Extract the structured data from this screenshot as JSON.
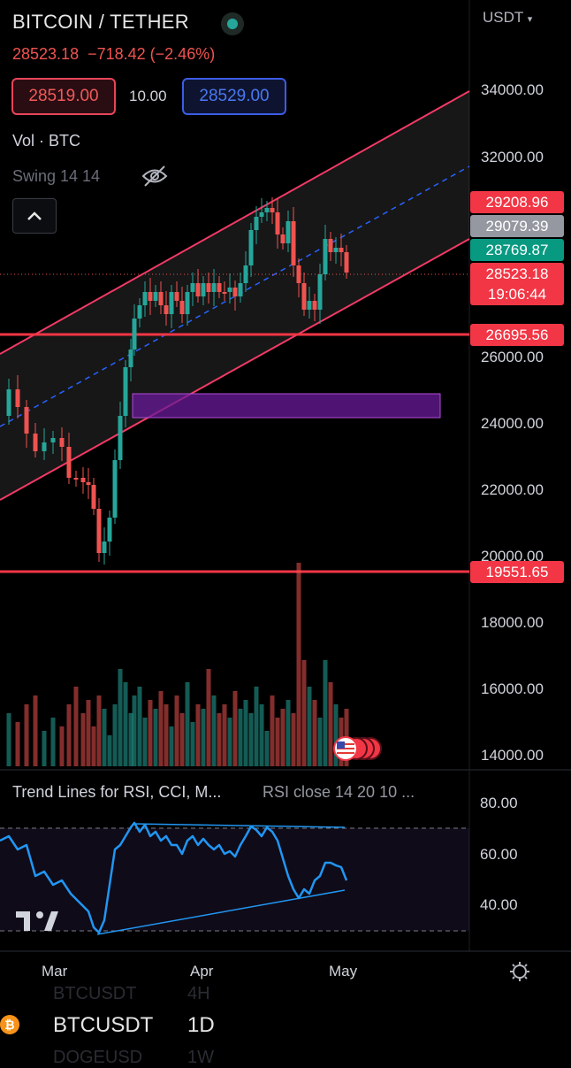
{
  "header": {
    "title": "BITCOIN / TETHER",
    "currency": "USDT",
    "last_price": "28523.18",
    "change": "−718.42 (−2.46%)",
    "bid": "28519.00",
    "spread": "10.00",
    "ask": "28529.00"
  },
  "indicators": {
    "vol_label": "Vol · BTC",
    "swing_label": "Swing 14 14"
  },
  "price_axis": {
    "labels": [
      "34000.00",
      "32000.00",
      "26000.00",
      "24000.00",
      "22000.00",
      "20000.00",
      "18000.00",
      "16000.00",
      "14000.00"
    ]
  },
  "price_tags": [
    {
      "value": "29208.96",
      "color": "#f23645"
    },
    {
      "value": "29079.39",
      "color": "#9598a1"
    },
    {
      "value": "28769.87",
      "color": "#089981"
    },
    {
      "value": "28523.18",
      "color": "#f23645"
    },
    {
      "value": "19:06:44",
      "color": "#f23645"
    },
    {
      "value": "26695.56",
      "color": "#f23645"
    },
    {
      "value": "19551.65",
      "color": "#f23645"
    }
  ],
  "rsi_panel": {
    "title": "Trend Lines for RSI, CCI, M...",
    "params": "RSI close 14 20 10 ...",
    "labels": [
      "80.00",
      "60.00",
      "40.00"
    ]
  },
  "time_axis": [
    "Mar",
    "Apr",
    "May"
  ],
  "bottom_bar": {
    "symbol": "BTCUSDT",
    "timeframe": "1D",
    "ghost_symbol_top": "BTCUSDT",
    "ghost_tf_top": "4H",
    "ghost_symbol_bottom": "DOGEUSD",
    "ghost_tf_bottom": "1W"
  },
  "colors": {
    "up": "#26a69a",
    "down": "#ef5350",
    "channel": "#f23a66",
    "level": "#f23645",
    "midline": "#2962ff",
    "zone": "#9c27b0",
    "rsi": "#2196f3"
  },
  "chart_data": {
    "type": "candlestick",
    "price_levels": [
      26695.56,
      19551.65
    ],
    "price_axis_range": [
      14000,
      34000
    ],
    "rsi_levels": [
      70,
      30
    ],
    "rsi_axis_labels": [
      80,
      60,
      40
    ]
  }
}
